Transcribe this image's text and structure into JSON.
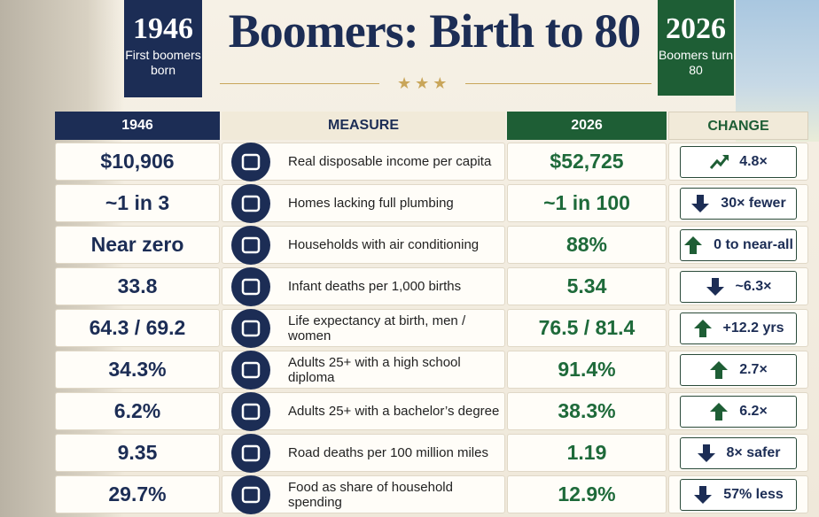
{
  "header": {
    "title": "Boomers: Birth to 80"
  },
  "badges": {
    "left": {
      "year": "1946",
      "text": "First boomers born"
    },
    "right": {
      "year": "2026",
      "text": "Boomers turn 80"
    }
  },
  "table": {
    "columns": [
      "1946",
      "MEASURE",
      "2026",
      "CHANGE"
    ],
    "rows": [
      [
        "$10,906",
        "Real disposable income per capita",
        "$52,725",
        "4.8×"
      ],
      [
        "~1 in 3",
        "Homes lacking full plumbing",
        "~1 in 100",
        "30× fewer"
      ],
      [
        "Near zero",
        "Households with air conditioning",
        "88%",
        "0 to near-all"
      ],
      [
        "33.8",
        "Infant deaths per 1,000 births",
        "5.34",
        "~6.3×"
      ],
      [
        "64.3 / 69.2",
        "Life expectancy at birth, men / women",
        "76.5 / 81.4",
        "+12.2 yrs"
      ],
      [
        "34.3%",
        "Adults 25+ with a high school diploma",
        "91.4%",
        "2.7×"
      ],
      [
        "6.2%",
        "Adults 25+ with a bachelor’s degree",
        "38.3%",
        "6.2×"
      ],
      [
        "9.35",
        "Road deaths per 100 million miles",
        "1.19",
        "8× safer"
      ],
      [
        "29.7%",
        "Food as share of household spending",
        "12.9%",
        "57% less"
      ]
    ]
  }
}
